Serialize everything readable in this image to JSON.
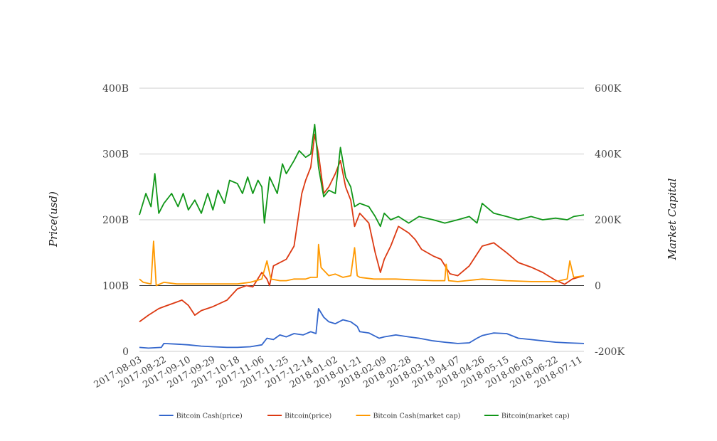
{
  "chart_data": {
    "type": "line",
    "title": "",
    "xlabel": "",
    "ylabel_left": "Price(usd)",
    "ylabel_right": "Market Capital",
    "x_ticks": [
      "2017-08-03",
      "2017-08-22",
      "2017-09-10",
      "2017-09-29",
      "2017-10-18",
      "2017-11-06",
      "2017-11-25",
      "2017-12-14",
      "2018-01-02",
      "2018-01-21",
      "2018-02-09",
      "2018-02-28",
      "2018-03-19",
      "2018-04-07",
      "2018-04-26",
      "2018-05-15",
      "2018-06-03",
      "2018-06-22",
      "2018-07-11"
    ],
    "x_range": [
      "2017-08-03",
      "2018-07-14"
    ],
    "y_left": {
      "range": [
        0,
        400
      ],
      "ticks": [
        "0",
        "100B",
        "200B",
        "300B",
        "400B"
      ]
    },
    "y_right": {
      "range": [
        -200,
        600
      ],
      "ticks": [
        "-200K",
        "0",
        "200K",
        "400K",
        "600K"
      ]
    },
    "grid": true,
    "legend_position": "bottom",
    "series": [
      {
        "name": "Bitcoin Cash(price)",
        "axis": "left",
        "color": "#3366cc",
        "points": [
          [
            "2017-08-03",
            6
          ],
          [
            "2017-08-10",
            5
          ],
          [
            "2017-08-20",
            6
          ],
          [
            "2017-08-22",
            12
          ],
          [
            "2017-09-01",
            11
          ],
          [
            "2017-09-10",
            10
          ],
          [
            "2017-09-20",
            8
          ],
          [
            "2017-09-29",
            7
          ],
          [
            "2017-10-10",
            6
          ],
          [
            "2017-10-18",
            6
          ],
          [
            "2017-10-28",
            7
          ],
          [
            "2017-11-06",
            10
          ],
          [
            "2017-11-10",
            20
          ],
          [
            "2017-11-15",
            18
          ],
          [
            "2017-11-20",
            25
          ],
          [
            "2017-11-25",
            22
          ],
          [
            "2017-12-01",
            27
          ],
          [
            "2017-12-08",
            25
          ],
          [
            "2017-12-14",
            30
          ],
          [
            "2017-12-18",
            27
          ],
          [
            "2017-12-20",
            65
          ],
          [
            "2017-12-24",
            52
          ],
          [
            "2017-12-28",
            45
          ],
          [
            "2018-01-02",
            42
          ],
          [
            "2018-01-08",
            48
          ],
          [
            "2018-01-14",
            45
          ],
          [
            "2018-01-19",
            38
          ],
          [
            "2018-01-21",
            30
          ],
          [
            "2018-01-28",
            28
          ],
          [
            "2018-02-05",
            20
          ],
          [
            "2018-02-09",
            22
          ],
          [
            "2018-02-18",
            25
          ],
          [
            "2018-02-28",
            22
          ],
          [
            "2018-03-08",
            20
          ],
          [
            "2018-03-19",
            16
          ],
          [
            "2018-03-28",
            14
          ],
          [
            "2018-04-07",
            12
          ],
          [
            "2018-04-16",
            13
          ],
          [
            "2018-04-22",
            20
          ],
          [
            "2018-04-26",
            24
          ],
          [
            "2018-05-05",
            28
          ],
          [
            "2018-05-15",
            27
          ],
          [
            "2018-05-24",
            20
          ],
          [
            "2018-06-03",
            18
          ],
          [
            "2018-06-12",
            16
          ],
          [
            "2018-06-22",
            14
          ],
          [
            "2018-07-01",
            13
          ],
          [
            "2018-07-14",
            12
          ]
        ]
      },
      {
        "name": "Bitcoin(price)",
        "axis": "left",
        "color": "#dc3912",
        "points": [
          [
            "2017-08-03",
            45
          ],
          [
            "2017-08-10",
            55
          ],
          [
            "2017-08-18",
            65
          ],
          [
            "2017-08-22",
            68
          ],
          [
            "2017-09-01",
            75
          ],
          [
            "2017-09-05",
            78
          ],
          [
            "2017-09-10",
            70
          ],
          [
            "2017-09-15",
            55
          ],
          [
            "2017-09-20",
            62
          ],
          [
            "2017-09-29",
            68
          ],
          [
            "2017-10-10",
            78
          ],
          [
            "2017-10-18",
            95
          ],
          [
            "2017-10-25",
            100
          ],
          [
            "2017-10-30",
            98
          ],
          [
            "2017-11-06",
            120
          ],
          [
            "2017-11-10",
            110
          ],
          [
            "2017-11-12",
            100
          ],
          [
            "2017-11-15",
            130
          ],
          [
            "2017-11-25",
            140
          ],
          [
            "2017-12-01",
            160
          ],
          [
            "2017-12-07",
            240
          ],
          [
            "2017-12-10",
            260
          ],
          [
            "2017-12-14",
            280
          ],
          [
            "2017-12-17",
            330
          ],
          [
            "2017-12-20",
            300
          ],
          [
            "2017-12-24",
            240
          ],
          [
            "2017-12-28",
            250
          ],
          [
            "2018-01-02",
            270
          ],
          [
            "2018-01-06",
            290
          ],
          [
            "2018-01-10",
            250
          ],
          [
            "2018-01-14",
            230
          ],
          [
            "2018-01-17",
            190
          ],
          [
            "2018-01-21",
            210
          ],
          [
            "2018-01-28",
            195
          ],
          [
            "2018-02-02",
            150
          ],
          [
            "2018-02-06",
            120
          ],
          [
            "2018-02-09",
            140
          ],
          [
            "2018-02-14",
            160
          ],
          [
            "2018-02-20",
            190
          ],
          [
            "2018-02-28",
            180
          ],
          [
            "2018-03-05",
            170
          ],
          [
            "2018-03-10",
            155
          ],
          [
            "2018-03-19",
            145
          ],
          [
            "2018-03-25",
            140
          ],
          [
            "2018-04-01",
            118
          ],
          [
            "2018-04-07",
            115
          ],
          [
            "2018-04-16",
            130
          ],
          [
            "2018-04-26",
            160
          ],
          [
            "2018-05-05",
            165
          ],
          [
            "2018-05-15",
            150
          ],
          [
            "2018-05-24",
            135
          ],
          [
            "2018-06-03",
            128
          ],
          [
            "2018-06-12",
            120
          ],
          [
            "2018-06-22",
            108
          ],
          [
            "2018-06-29",
            102
          ],
          [
            "2018-07-05",
            110
          ],
          [
            "2018-07-14",
            115
          ]
        ]
      },
      {
        "name": "Bitcoin Cash(market cap)",
        "axis": "right",
        "color": "#ff9900",
        "points": [
          [
            "2017-08-03",
            20
          ],
          [
            "2017-08-06",
            10
          ],
          [
            "2017-08-12",
            5
          ],
          [
            "2017-08-14",
            135
          ],
          [
            "2017-08-16",
            0
          ],
          [
            "2017-08-22",
            10
          ],
          [
            "2017-09-01",
            5
          ],
          [
            "2017-09-10",
            5
          ],
          [
            "2017-09-20",
            5
          ],
          [
            "2017-09-29",
            5
          ],
          [
            "2017-10-18",
            5
          ],
          [
            "2017-10-28",
            10
          ],
          [
            "2017-11-06",
            20
          ],
          [
            "2017-11-10",
            75
          ],
          [
            "2017-11-13",
            20
          ],
          [
            "2017-11-20",
            15
          ],
          [
            "2017-11-25",
            15
          ],
          [
            "2017-12-01",
            20
          ],
          [
            "2017-12-10",
            20
          ],
          [
            "2017-12-14",
            25
          ],
          [
            "2017-12-19",
            25
          ],
          [
            "2017-12-20",
            125
          ],
          [
            "2017-12-22",
            55
          ],
          [
            "2017-12-28",
            30
          ],
          [
            "2018-01-02",
            35
          ],
          [
            "2018-01-08",
            25
          ],
          [
            "2018-01-14",
            30
          ],
          [
            "2018-01-17",
            115
          ],
          [
            "2018-01-19",
            30
          ],
          [
            "2018-01-21",
            25
          ],
          [
            "2018-02-01",
            20
          ],
          [
            "2018-02-09",
            20
          ],
          [
            "2018-02-18",
            20
          ],
          [
            "2018-02-28",
            18
          ],
          [
            "2018-03-19",
            15
          ],
          [
            "2018-03-28",
            15
          ],
          [
            "2018-03-29",
            65
          ],
          [
            "2018-03-31",
            15
          ],
          [
            "2018-04-07",
            12
          ],
          [
            "2018-04-26",
            20
          ],
          [
            "2018-05-15",
            15
          ],
          [
            "2018-06-03",
            12
          ],
          [
            "2018-06-22",
            12
          ],
          [
            "2018-07-01",
            20
          ],
          [
            "2018-07-03",
            75
          ],
          [
            "2018-07-06",
            25
          ],
          [
            "2018-07-14",
            30
          ]
        ]
      },
      {
        "name": "Bitcoin(market cap)",
        "axis": "right",
        "color": "#109618",
        "points": [
          [
            "2017-08-03",
            215
          ],
          [
            "2017-08-08",
            280
          ],
          [
            "2017-08-12",
            240
          ],
          [
            "2017-08-15",
            340
          ],
          [
            "2017-08-18",
            220
          ],
          [
            "2017-08-22",
            250
          ],
          [
            "2017-08-28",
            280
          ],
          [
            "2017-09-02",
            240
          ],
          [
            "2017-09-06",
            280
          ],
          [
            "2017-09-10",
            230
          ],
          [
            "2017-09-15",
            260
          ],
          [
            "2017-09-20",
            220
          ],
          [
            "2017-09-25",
            280
          ],
          [
            "2017-09-29",
            230
          ],
          [
            "2017-10-03",
            290
          ],
          [
            "2017-10-08",
            250
          ],
          [
            "2017-10-12",
            320
          ],
          [
            "2017-10-18",
            310
          ],
          [
            "2017-10-22",
            280
          ],
          [
            "2017-10-26",
            330
          ],
          [
            "2017-10-30",
            280
          ],
          [
            "2017-11-03",
            320
          ],
          [
            "2017-11-06",
            300
          ],
          [
            "2017-11-08",
            190
          ],
          [
            "2017-11-12",
            330
          ],
          [
            "2017-11-18",
            280
          ],
          [
            "2017-11-22",
            370
          ],
          [
            "2017-11-25",
            340
          ],
          [
            "2017-12-01",
            380
          ],
          [
            "2017-12-05",
            410
          ],
          [
            "2017-12-10",
            390
          ],
          [
            "2017-12-14",
            400
          ],
          [
            "2017-12-17",
            490
          ],
          [
            "2017-12-20",
            360
          ],
          [
            "2017-12-24",
            270
          ],
          [
            "2017-12-28",
            290
          ],
          [
            "2018-01-02",
            280
          ],
          [
            "2018-01-06",
            420
          ],
          [
            "2018-01-10",
            330
          ],
          [
            "2018-01-14",
            300
          ],
          [
            "2018-01-17",
            240
          ],
          [
            "2018-01-21",
            250
          ],
          [
            "2018-01-28",
            240
          ],
          [
            "2018-02-02",
            210
          ],
          [
            "2018-02-06",
            180
          ],
          [
            "2018-02-09",
            220
          ],
          [
            "2018-02-14",
            200
          ],
          [
            "2018-02-20",
            210
          ],
          [
            "2018-02-28",
            190
          ],
          [
            "2018-03-08",
            210
          ],
          [
            "2018-03-19",
            200
          ],
          [
            "2018-03-28",
            190
          ],
          [
            "2018-04-07",
            200
          ],
          [
            "2018-04-16",
            210
          ],
          [
            "2018-04-22",
            190
          ],
          [
            "2018-04-26",
            250
          ],
          [
            "2018-05-05",
            220
          ],
          [
            "2018-05-15",
            210
          ],
          [
            "2018-05-24",
            200
          ],
          [
            "2018-06-03",
            210
          ],
          [
            "2018-06-12",
            200
          ],
          [
            "2018-06-22",
            205
          ],
          [
            "2018-07-01",
            200
          ],
          [
            "2018-07-06",
            210
          ],
          [
            "2018-07-14",
            215
          ]
        ]
      }
    ]
  }
}
